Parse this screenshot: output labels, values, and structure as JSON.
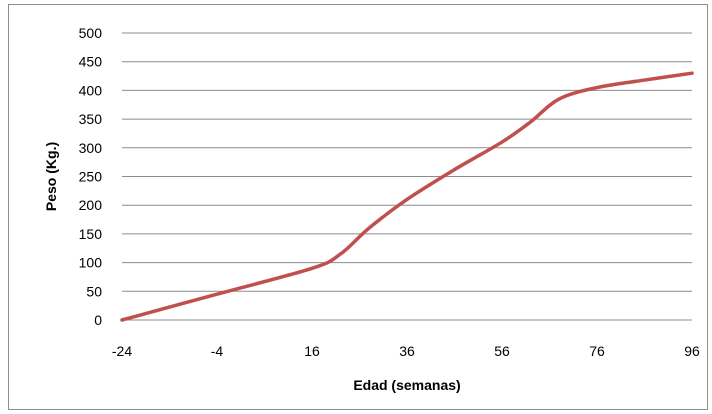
{
  "chart_data": {
    "type": "line",
    "title": "",
    "xlabel": "Edad (semanas)",
    "ylabel": "Peso (Kg.)",
    "xlim": [
      -24,
      96
    ],
    "ylim": [
      0,
      500
    ],
    "x_ticks": [
      "-24",
      "-4",
      "16",
      "36",
      "56",
      "76",
      "96"
    ],
    "y_ticks": [
      "0",
      "50",
      "100",
      "150",
      "200",
      "250",
      "300",
      "350",
      "400",
      "450",
      "500"
    ],
    "grid": "horizontal",
    "legend": "none",
    "series": [
      {
        "color": "#C0504D",
        "points": [
          [
            -24,
            0
          ],
          [
            -4,
            45
          ],
          [
            16,
            90
          ],
          [
            22,
            115
          ],
          [
            28,
            160
          ],
          [
            36,
            210
          ],
          [
            46,
            262
          ],
          [
            56,
            310
          ],
          [
            62,
            345
          ],
          [
            68,
            385
          ],
          [
            76,
            405
          ],
          [
            86,
            418
          ],
          [
            96,
            430
          ]
        ]
      }
    ]
  }
}
